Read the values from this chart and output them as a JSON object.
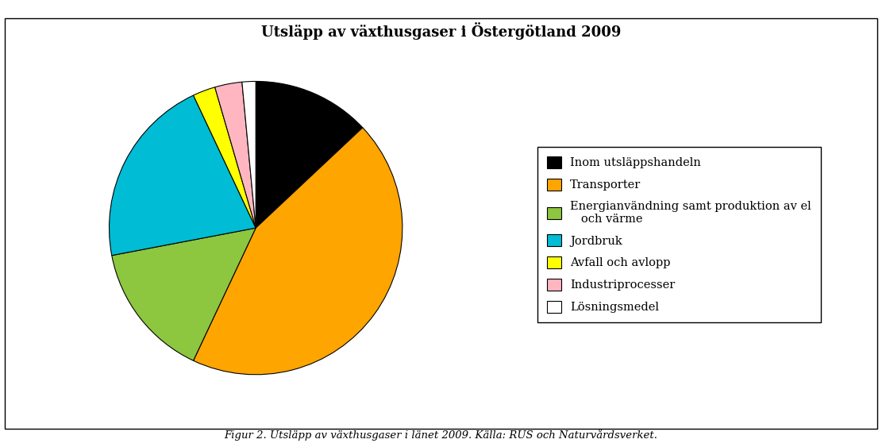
{
  "title": "Utsläpp av växthusgaser i Östergötland 2009",
  "caption": "Figur 2. Utsläpp av växthusgaser i länet 2009. Källa: RUS och Naturvårdsverket.",
  "slices": [
    13.0,
    44.0,
    15.0,
    21.0,
    2.5,
    3.0,
    1.5
  ],
  "colors": [
    "#000000",
    "#FFA500",
    "#8DC63F",
    "#00BCD4",
    "#FFFF00",
    "#FFB6C1",
    "#FFFFFF"
  ],
  "labels": [
    "Inom utsläppshandeln",
    "Transporter",
    "Energianvändning samt produktion av el\n   och värme",
    "Jordbruk",
    "Avfall och avlopp",
    "Industriprocesser",
    "Lösningsmedel"
  ],
  "startangle": 90,
  "title_fontsize": 13,
  "legend_fontsize": 10.5,
  "caption_fontsize": 9.5,
  "background_color": "#FFFFFF",
  "border_color": "#000000"
}
